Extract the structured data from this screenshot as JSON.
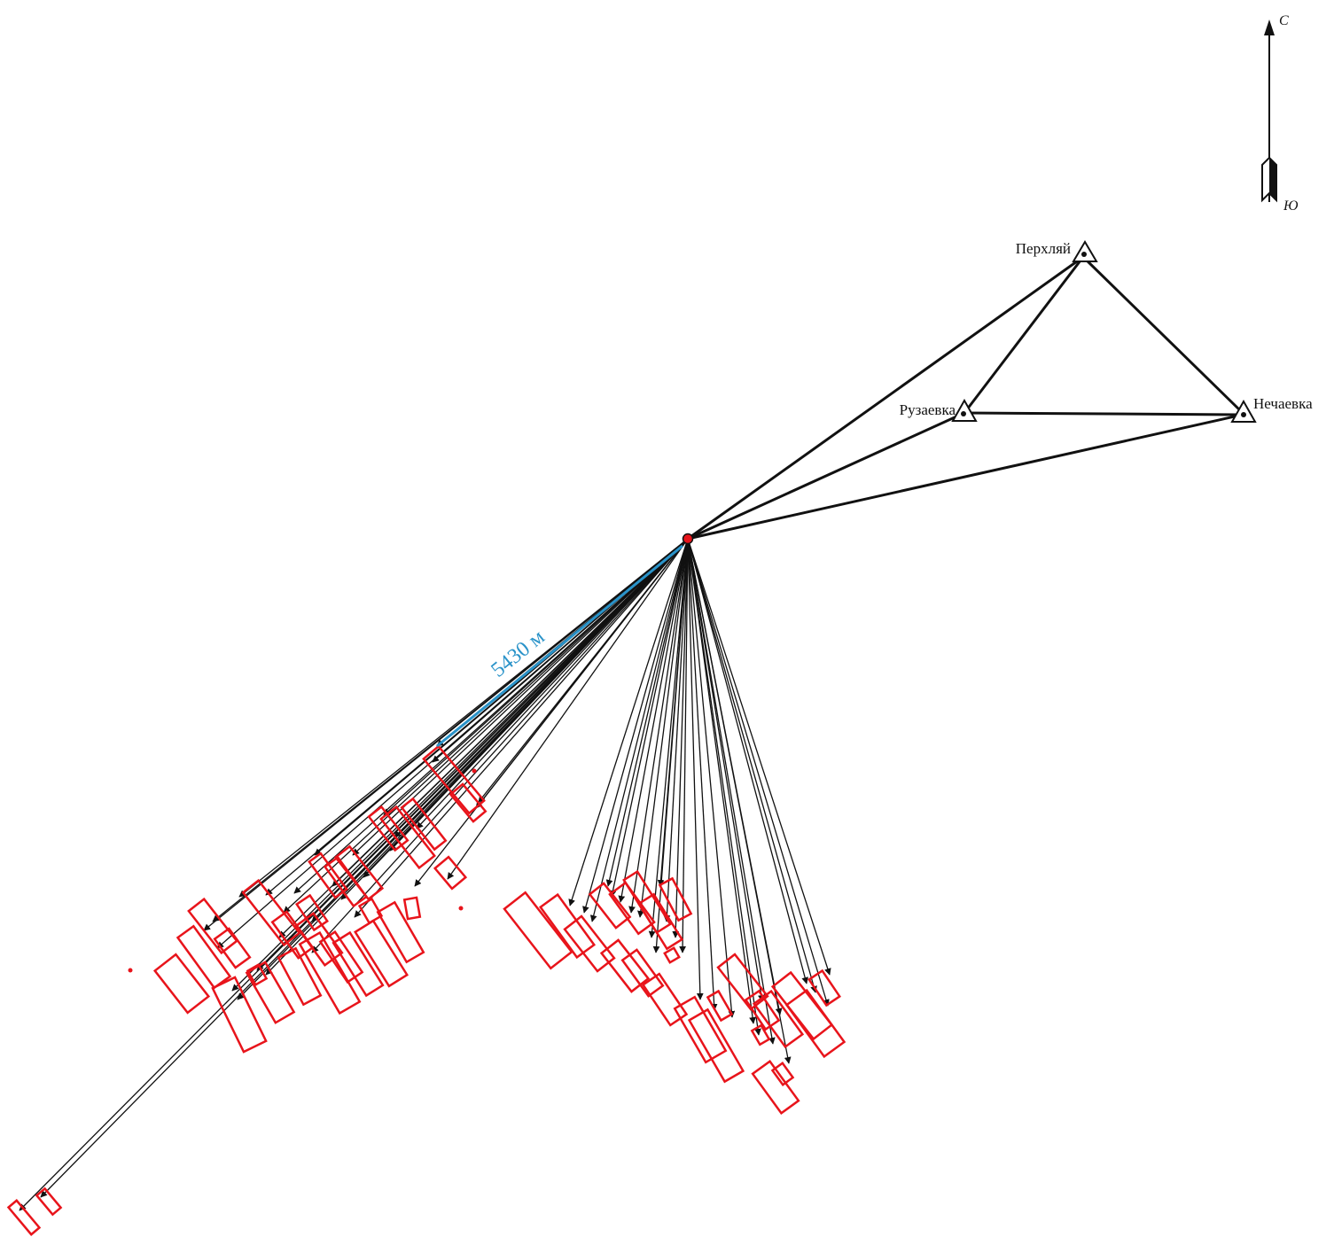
{
  "compass": {
    "north": "С",
    "south": "Ю"
  },
  "stations": [
    {
      "name": "Перхляй"
    },
    {
      "name": "Рузаевка"
    },
    {
      "name": "Нечаевка"
    }
  ],
  "distance_label": "5430 м",
  "colors": {
    "lines": "#111111",
    "buildings": "#e8141b",
    "measure": "#2a93c9",
    "center": "#e8141b"
  }
}
